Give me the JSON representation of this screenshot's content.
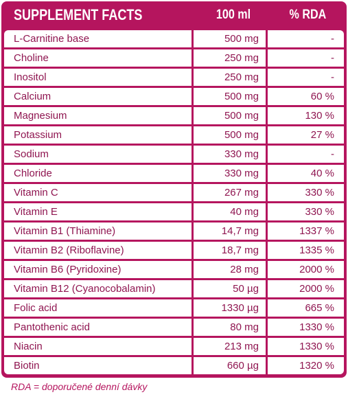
{
  "table": {
    "headers": {
      "name": "SUPPLEMENT FACTS",
      "amount": "100 ml",
      "rda": "% RDA"
    },
    "rows": [
      {
        "name": "L-Carnitine base",
        "amount": "500 mg",
        "rda": "-"
      },
      {
        "name": "Choline",
        "amount": "250 mg",
        "rda": "-"
      },
      {
        "name": "Inositol",
        "amount": "250 mg",
        "rda": "-"
      },
      {
        "name": "Calcium",
        "amount": "500 mg",
        "rda": "60 %"
      },
      {
        "name": "Magnesium",
        "amount": "500 mg",
        "rda": "130 %"
      },
      {
        "name": "Potassium",
        "amount": "500 mg",
        "rda": "27 %"
      },
      {
        "name": "Sodium",
        "amount": "330 mg",
        "rda": "-"
      },
      {
        "name": "Chloride",
        "amount": "330 mg",
        "rda": "40 %"
      },
      {
        "name": "Vitamin C",
        "amount": "267 mg",
        "rda": "330 %"
      },
      {
        "name": "Vitamin E",
        "amount": "40 mg",
        "rda": "330 %"
      },
      {
        "name": "Vitamin B1 (Thiamine)",
        "amount": "14,7 mg",
        "rda": "1337 %"
      },
      {
        "name": "Vitamin B2 (Riboflavine)",
        "amount": "18,7 mg",
        "rda": "1335 %"
      },
      {
        "name": "Vitamin B6 (Pyridoxine)",
        "amount": "28 mg",
        "rda": "2000 %"
      },
      {
        "name": "Vitamin B12 (Cyanocobalamin)",
        "amount": "50 µg",
        "rda": "2000 %"
      },
      {
        "name": "Folic acid",
        "amount": "1330 µg",
        "rda": "665 %"
      },
      {
        "name": "Pantothenic acid",
        "amount": "80 mg",
        "rda": "1330 %"
      },
      {
        "name": "Niacin",
        "amount": "213 mg",
        "rda": "1330 %"
      },
      {
        "name": "Biotin",
        "amount": "660 µg",
        "rda": "1320 %"
      }
    ]
  },
  "footnote": "RDA = doporučené denní dávky",
  "colors": {
    "accent": "#b5155e",
    "text": "#8f1550",
    "background": "#ffffff"
  }
}
